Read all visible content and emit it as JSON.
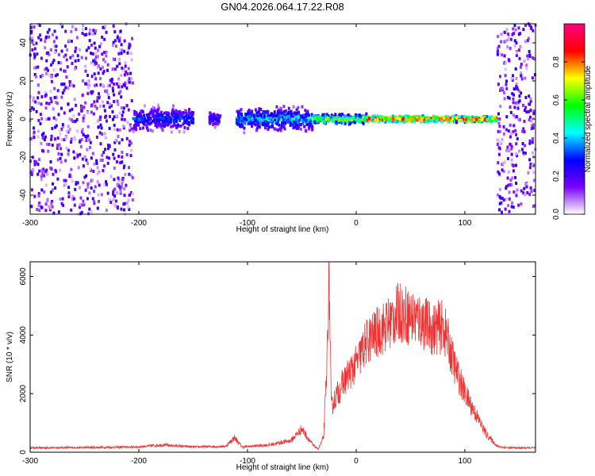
{
  "title": "GN04.2026.064.17.22.R08",
  "chart_data": [
    {
      "type": "heatmap",
      "xlabel": "Height of straight line (km)",
      "ylabel": "Frequency (Hz)",
      "xlim": [
        -300,
        165
      ],
      "ylim": [
        -50,
        50
      ],
      "x_ticks": [
        "-300",
        "-200",
        "-100",
        "0",
        "100"
      ],
      "y_ticks": [
        "40",
        "20",
        "0",
        "-20",
        "-40"
      ],
      "colorbar": {
        "label": "Normalized spectral amplitude",
        "range": [
          0,
          1
        ],
        "ticks": [
          "0.0",
          "0.2",
          "0.4",
          "0.6",
          "0.8"
        ],
        "colors": [
          "#ffffff",
          "#7a00ff",
          "#0000ff",
          "#00ffff",
          "#00ff00",
          "#ffff00",
          "#ff0000",
          "#ff0080"
        ]
      },
      "regions": [
        {
          "x": [
            -300,
            -205
          ],
          "freq_spread": 50,
          "amplitude": 0.12
        },
        {
          "x": [
            -205,
            -150
          ],
          "freq_spread": 8,
          "amplitude": 0.35
        },
        {
          "x": [
            -135,
            -125
          ],
          "freq_spread": 5,
          "amplitude": 0.3
        },
        {
          "x": [
            -110,
            -40
          ],
          "freq_spread": 8,
          "amplitude": 0.45
        },
        {
          "x": [
            -40,
            10
          ],
          "freq_spread": 3,
          "amplitude": 0.7
        },
        {
          "x": [
            10,
            130
          ],
          "freq_spread": 2,
          "amplitude": 0.95
        },
        {
          "x": [
            130,
            165
          ],
          "freq_spread": 50,
          "amplitude": 0.12
        }
      ]
    },
    {
      "type": "line",
      "xlabel": "Height of straight line (km)",
      "ylabel": "SNR (10 * v/v)",
      "xlim": [
        -300,
        165
      ],
      "ylim": [
        0,
        6500
      ],
      "x_ticks": [
        "-300",
        "-200",
        "-100",
        "0",
        "100"
      ],
      "y_ticks": [
        "0",
        "2000",
        "4000",
        "6000"
      ],
      "series": [
        {
          "color": "#ee3333",
          "x": [
            -300,
            -250,
            -200,
            -180,
            -150,
            -120,
            -112,
            -105,
            -80,
            -60,
            -50,
            -40,
            -35,
            -30,
            -27,
            -25,
            -23,
            -20,
            -10,
            0,
            10,
            20,
            30,
            40,
            50,
            60,
            70,
            80,
            85,
            90,
            100,
            110,
            120,
            130,
            140,
            150,
            165
          ],
          "y": [
            150,
            160,
            180,
            250,
            180,
            200,
            500,
            180,
            250,
            400,
            800,
            250,
            100,
            500,
            2800,
            6500,
            1500,
            1800,
            2500,
            3000,
            3800,
            4100,
            4400,
            4800,
            4600,
            4500,
            4200,
            4300,
            3700,
            3000,
            2000,
            1300,
            600,
            200,
            150,
            150,
            150
          ]
        }
      ]
    }
  ]
}
